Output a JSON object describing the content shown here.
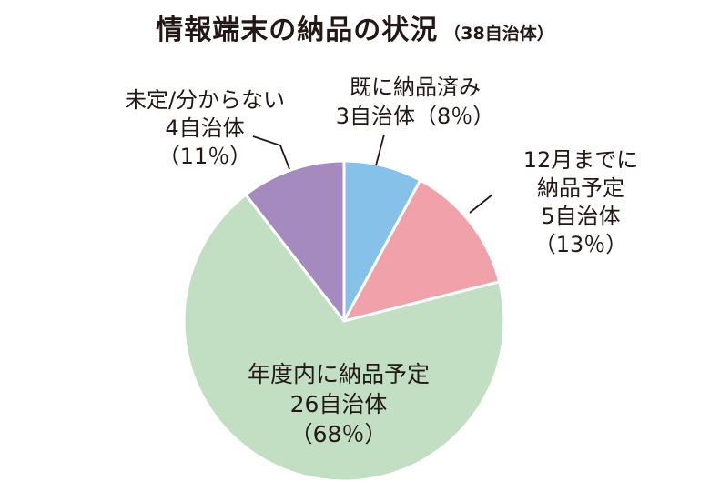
{
  "title": "情報端末の納品の状況",
  "subtitle": "（38自治体）",
  "chart_data": {
    "type": "pie",
    "title": "情報端末の納品の状況",
    "subtitle": "（38自治体）",
    "start_angle_deg": 0,
    "direction": "clockwise",
    "slices": [
      {
        "name": "既に納品済み",
        "count": 3,
        "count_label": "3自治体",
        "percent_label": "（8％）",
        "color": "#85c1e8"
      },
      {
        "name": "12月までに納品予定",
        "count": 5,
        "count_label": "5自治体",
        "percent_label": "（13％）",
        "color": "#f1a1aa"
      },
      {
        "name": "年度内に納品予定",
        "count": 26,
        "count_label": "26自治体",
        "percent_label": "（68％）",
        "color": "#c2dfc4"
      },
      {
        "name": "未定/分からない",
        "count": 4,
        "count_label": "4自治体",
        "percent_label": "（11％）",
        "color": "#a58abf"
      }
    ],
    "labels": [
      {
        "lines": [
          "既に納品済み",
          "3自治体（8％）"
        ]
      },
      {
        "lines": [
          "12月までに",
          "納品予定",
          "5自治体",
          "（13％）"
        ]
      },
      {
        "lines": [
          "年度内に納品予定",
          "26自治体",
          "（68％）"
        ]
      },
      {
        "lines": [
          "未定/分からない",
          "4自治体",
          "（11％）"
        ]
      }
    ]
  }
}
